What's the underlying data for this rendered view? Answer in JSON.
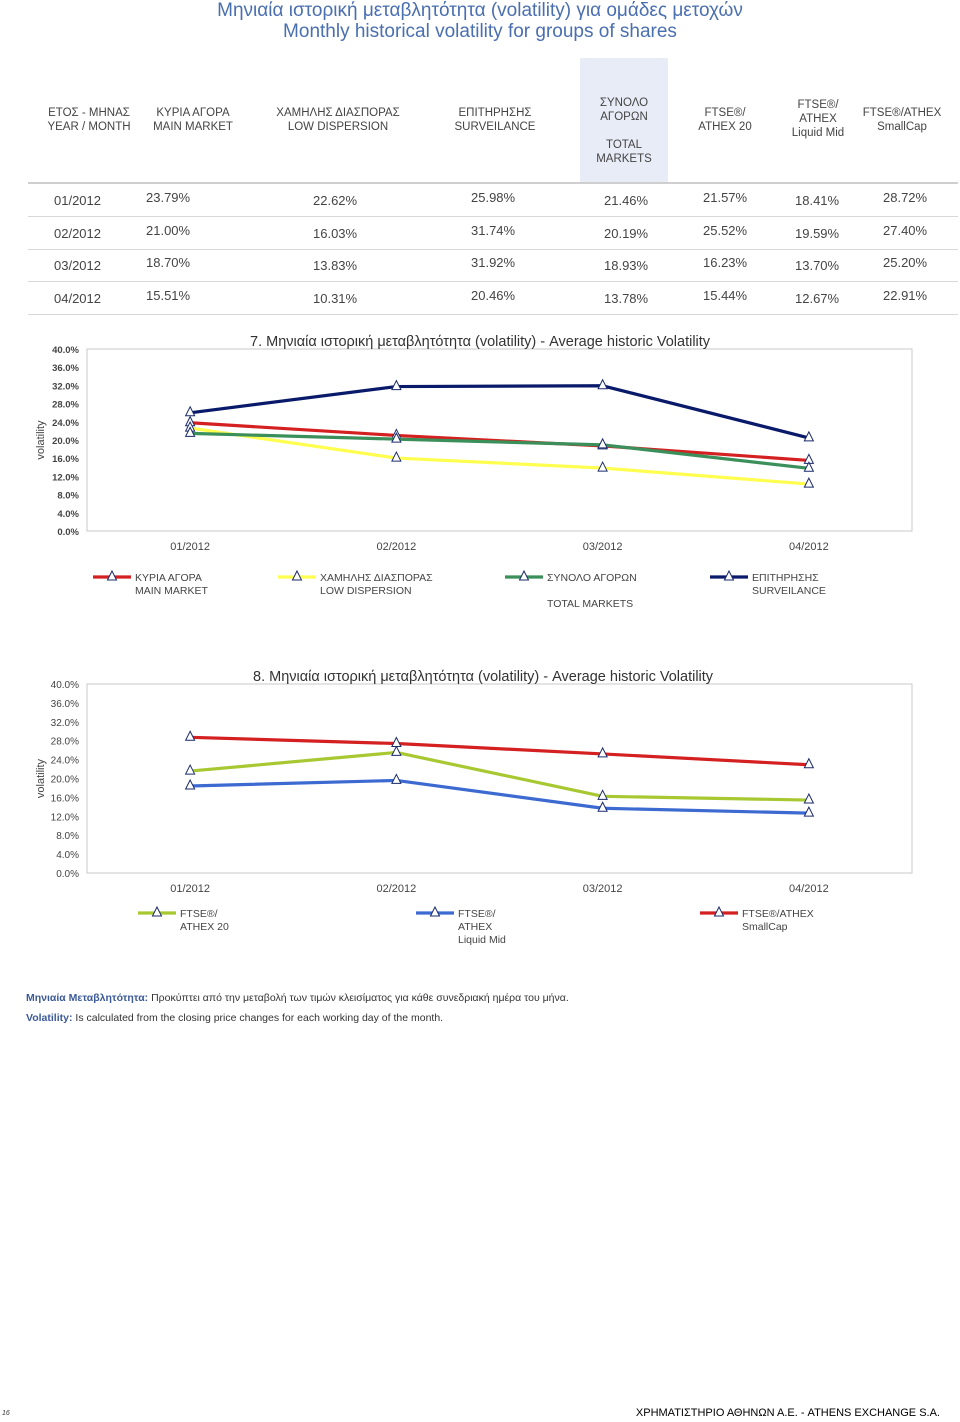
{
  "title_gr": "Μηνιαία ιστορική μεταβλητότητα (volatility) για ομάδες μετοχών",
  "title_en": "Monthly historical volatility for groups of shares",
  "table": {
    "headers": [
      [
        "ΕΤΟΣ - ΜΗΝΑΣ",
        "YEAR / MONTH"
      ],
      [
        "ΚΥΡΙΑ ΑΓΟΡΑ",
        "MAIN MARKET"
      ],
      [
        "ΧΑΜΗΛΗΣ ΔΙΑΣΠΟΡΑΣ",
        "LOW DISPERSION"
      ],
      [
        "ΕΠΙΤΗΡΗΣΗΣ",
        "SURVEILANCE"
      ],
      [
        "ΣΥΝΟΛΟ ΑΓΟΡΩΝ",
        "",
        "TOTAL MARKETS"
      ],
      [
        "FTSE®/",
        "ATHEX 20"
      ],
      [
        "FTSE®/",
        "ATHEX",
        "Liquid Mid"
      ],
      [
        "FTSE®/ATHEX",
        "SmallCap"
      ]
    ],
    "rows": [
      [
        "01/2012",
        "23.79%",
        "22.62%",
        "25.98%",
        "21.46%",
        "21.57%",
        "18.41%",
        "28.72%"
      ],
      [
        "02/2012",
        "21.00%",
        "16.03%",
        "31.74%",
        "20.19%",
        "25.52%",
        "19.59%",
        "27.40%"
      ],
      [
        "03/2012",
        "18.70%",
        "13.83%",
        "31.92%",
        "18.93%",
        "16.23%",
        "13.70%",
        "25.20%"
      ],
      [
        "04/2012",
        "15.51%",
        "10.31%",
        "20.46%",
        "13.78%",
        "15.44%",
        "12.67%",
        "22.91%"
      ]
    ]
  },
  "chart_data": [
    {
      "type": "line",
      "title": "7. Μηνιαία ιστορική μεταβλητότητα (volatility) - Average historic Volatility",
      "ylabel": "volatility",
      "ylim": [
        0,
        40
      ],
      "ytick_labels": [
        "0.0%",
        "4.0%",
        "8.0%",
        "12.0%",
        "16.0%",
        "20.0%",
        "24.0%",
        "28.0%",
        "32.0%",
        "36.0%",
        "40.0%"
      ],
      "categories": [
        "01/2012",
        "02/2012",
        "03/2012",
        "04/2012"
      ],
      "series": [
        {
          "name": [
            "ΚΥΡΙΑ ΑΓΟΡΑ",
            "MAIN MARKET"
          ],
          "color": "#d42020",
          "values": [
            23.79,
            21.0,
            18.7,
            15.51
          ]
        },
        {
          "name": [
            "ΧΑΜΗΛΗΣ ΔΙΑΣΠΟΡΑΣ",
            "LOW DISPERSION"
          ],
          "color": "#ffff50",
          "values": [
            22.62,
            16.03,
            13.83,
            10.31
          ]
        },
        {
          "name": [
            "ΣΥΝΟΛΟ ΑΓΟΡΩΝ",
            "",
            "TOTAL MARKETS"
          ],
          "color": "#3a8f5a",
          "values": [
            21.46,
            20.19,
            18.93,
            13.78
          ]
        },
        {
          "name": [
            "ΕΠΙΤΗΡΗΣΗΣ",
            "SURVEILANCE"
          ],
          "color": "#0a1a6a",
          "values": [
            25.98,
            31.74,
            31.92,
            20.46
          ]
        }
      ],
      "legend": "bottom"
    },
    {
      "type": "line",
      "title": "8. Μηνιαία ιστορική μεταβλητότητα (volatility) - Average historic Volatility",
      "ylabel": "volatility",
      "ylim": [
        0,
        40
      ],
      "ytick_labels": [
        "0.0%",
        "4.0%",
        "8.0%",
        "12.0%",
        "16.0%",
        "20.0%",
        "24.0%",
        "28.0%",
        "32.0%",
        "36.0%",
        "40.0%"
      ],
      "categories": [
        "01/2012",
        "02/2012",
        "03/2012",
        "04/2012"
      ],
      "series": [
        {
          "name": [
            "FTSE®/",
            "ATHEX 20"
          ],
          "color": "#a8c832",
          "values": [
            21.57,
            25.52,
            16.23,
            15.44
          ]
        },
        {
          "name": [
            "FTSE®/",
            "ATHEX",
            "Liquid Mid"
          ],
          "color": "#3c6ad0",
          "values": [
            18.41,
            19.59,
            13.7,
            12.67
          ]
        },
        {
          "name": [
            "FTSE®/ATHEX",
            "SmallCap"
          ],
          "color": "#d42020",
          "values": [
            28.72,
            27.4,
            25.2,
            22.91
          ]
        }
      ],
      "legend": "bottom"
    }
  ],
  "notes": {
    "gr_label": "Μηνιαία Μεταβλητότητα:",
    "gr_text": " Προκύπτει από την μεταβολή των τιμών κλεισίματος για κάθε συνεδριακή ημέρα του μήνα.",
    "en_label": "Volatility:",
    "en_text": " Is calculated from the closing price changes for each working day of the month."
  },
  "footer": {
    "page_number": "16",
    "company": "ΧΡΗΜΑΤΙΣΤΗΡΙΟ ΑΘΗΝΩΝ Α.Ε. - ATHENS EXCHANGE S.A."
  }
}
